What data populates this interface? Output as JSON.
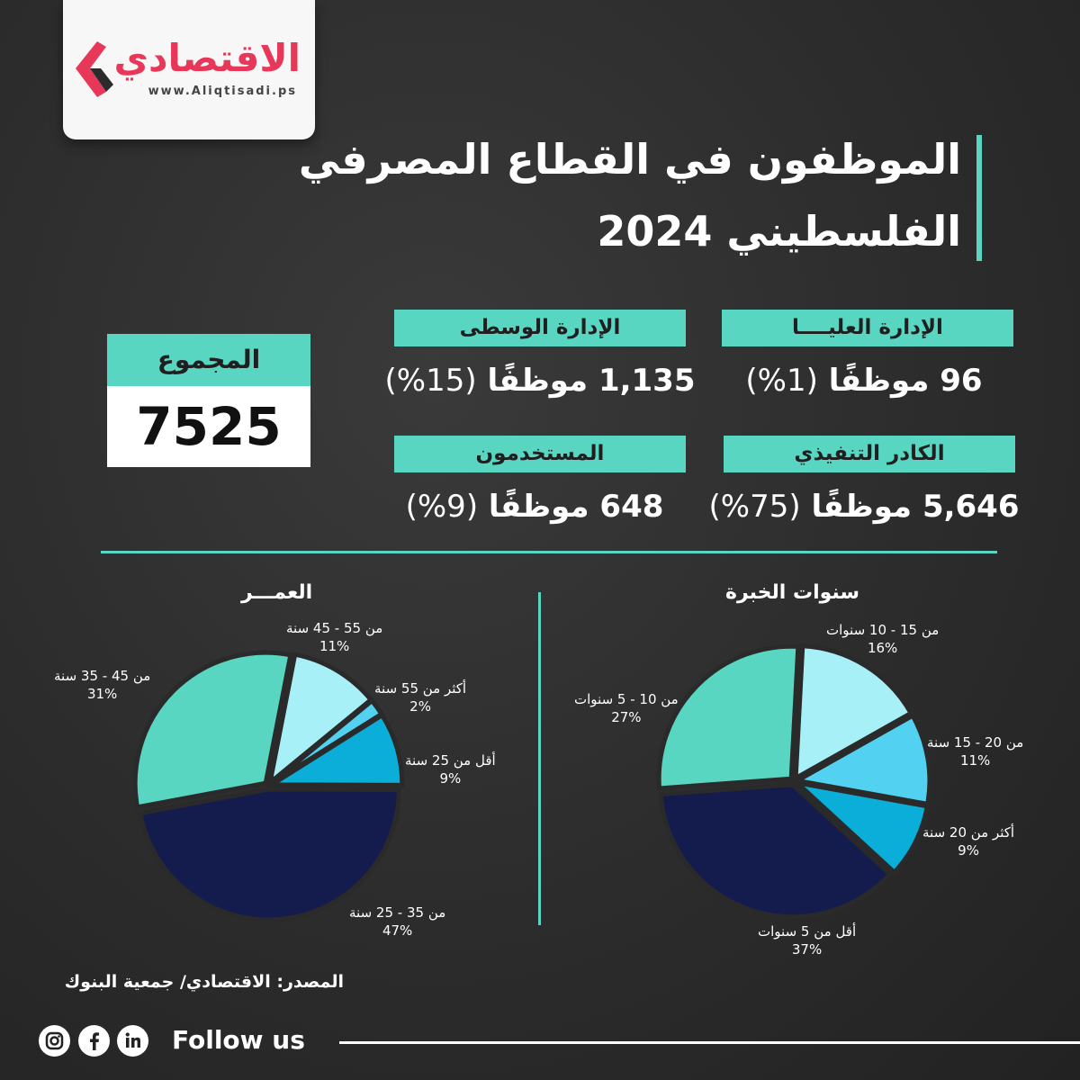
{
  "brand": {
    "name": "الاقتصادي",
    "url": "www.Aliqtisadi.ps",
    "accent": "#e7385a"
  },
  "title": {
    "line1": "الموظفون في القطاع المصرفي",
    "line2": "الفلسطيني 2024"
  },
  "total": {
    "label": "المجموع",
    "value": "7525"
  },
  "categories": [
    {
      "label": "الإدارة العليــــا",
      "count": "96",
      "unit": "موظفًا",
      "pct": "(1%)"
    },
    {
      "label": "الإدارة الوسطى",
      "count": "1,135",
      "unit": "موظفًا",
      "pct": "(15%)"
    },
    {
      "label": "الكادر التنفيذي",
      "count": "5,646",
      "unit": "موظفًا",
      "pct": "(75%)"
    },
    {
      "label": "المستخدمون",
      "count": "648",
      "unit": "موظفًا",
      "pct": "(9%)"
    }
  ],
  "colors": {
    "accent": "#58d6c2",
    "background": "#2c2c2c"
  },
  "chart_data": [
    {
      "type": "pie",
      "title": "العمـــر",
      "slices": [
        {
          "label": "من 55 - 45 سنة",
          "value": 11,
          "value_label": "11%",
          "color": "#a8f0f7"
        },
        {
          "label": "أكثر من 55 سنة",
          "value": 2,
          "value_label": "2%",
          "color": "#52d2f0"
        },
        {
          "label": "أقل من 25 سنة",
          "value": 9,
          "value_label": "9%",
          "color": "#0aaed8"
        },
        {
          "label": "من 35 - 25 سنة",
          "value": 47,
          "value_label": "47%",
          "color": "#141c4e"
        },
        {
          "label": "من 45 - 35 سنة",
          "value": 31,
          "value_label": "31%",
          "color": "#58d6c2"
        }
      ]
    },
    {
      "type": "pie",
      "title": "سنوات الخبرة",
      "slices": [
        {
          "label": "من 15 - 10 سنوات",
          "value": 16,
          "value_label": "16%",
          "color": "#a8f0f7"
        },
        {
          "label": "من 20 - 15 سنة",
          "value": 11,
          "value_label": "11%",
          "color": "#52d2f0"
        },
        {
          "label": "أكثر من 20 سنة",
          "value": 9,
          "value_label": "9%",
          "color": "#0aaed8"
        },
        {
          "label": "أقل من 5 سنوات",
          "value": 37,
          "value_label": "37%",
          "color": "#141c4e"
        },
        {
          "label": "من 10 - 5 سنوات",
          "value": 27,
          "value_label": "27%",
          "color": "#58d6c2"
        }
      ]
    }
  ],
  "source": "المصدر: الاقتصادي/ جمعية البنوك",
  "footer": {
    "follow": "Follow us",
    "icons": [
      "instagram-icon",
      "facebook-icon",
      "linkedin-icon"
    ]
  }
}
